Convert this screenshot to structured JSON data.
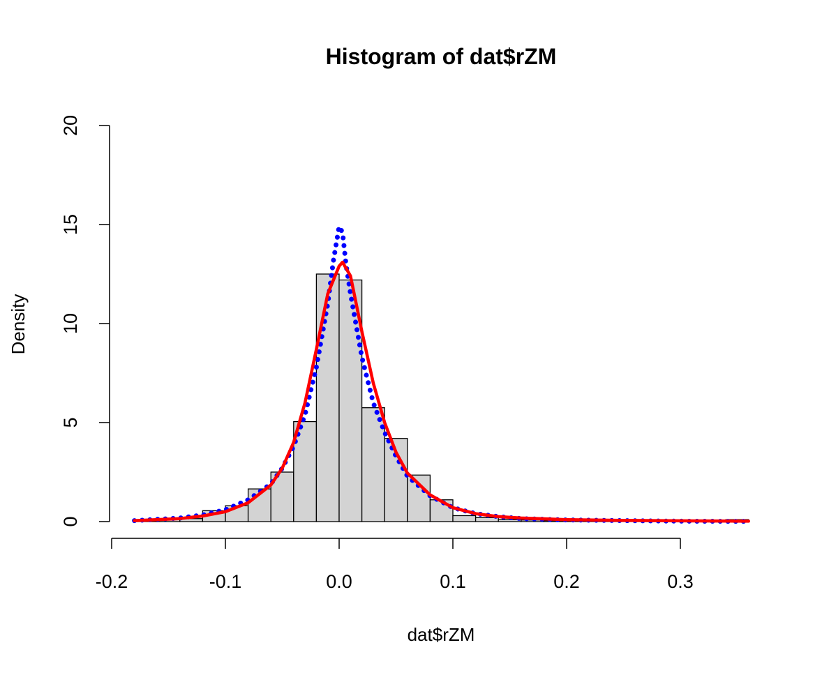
{
  "chart_data": {
    "type": "bar",
    "title": "Histogram of dat$rZM",
    "xlabel": "dat$rZM",
    "ylabel": "Density",
    "xlim": [
      -0.2,
      0.36
    ],
    "ylim": [
      0,
      20
    ],
    "x_ticks": [
      "-0.2",
      "-0.1",
      "0.0",
      "0.1",
      "0.2",
      "0.3"
    ],
    "x_tick_values": [
      -0.2,
      -0.1,
      0.0,
      0.1,
      0.2,
      0.3
    ],
    "y_ticks": [
      "0",
      "5",
      "10",
      "15",
      "20"
    ],
    "y_tick_values": [
      0,
      5,
      10,
      15,
      20
    ],
    "grid": false,
    "histogram": {
      "bin_edges": [
        -0.18,
        -0.16,
        -0.14,
        -0.12,
        -0.1,
        -0.08,
        -0.06,
        -0.04,
        -0.02,
        0.0,
        0.02,
        0.04,
        0.06,
        0.08,
        0.1,
        0.12,
        0.14,
        0.16,
        0.18,
        0.2,
        0.22,
        0.24,
        0.26,
        0.28,
        0.3,
        0.32,
        0.34,
        0.36
      ],
      "densities": [
        0.05,
        0.1,
        0.15,
        0.55,
        0.8,
        1.65,
        2.5,
        5.05,
        12.5,
        12.2,
        5.75,
        4.2,
        2.35,
        1.1,
        0.3,
        0.2,
        0.1,
        0.08,
        0.05,
        0.05,
        0.03,
        0.03,
        0.02,
        0.02,
        0.0,
        0.0,
        0.1
      ],
      "fill": "#d3d3d3",
      "stroke": "#000000"
    },
    "series": [
      {
        "style": "solid",
        "color": "#ff0000",
        "x": [
          -0.18,
          -0.14,
          -0.12,
          -0.1,
          -0.08,
          -0.06,
          -0.05,
          -0.04,
          -0.03,
          -0.02,
          -0.01,
          0.0,
          0.003,
          0.01,
          0.02,
          0.03,
          0.04,
          0.05,
          0.06,
          0.08,
          0.1,
          0.12,
          0.14,
          0.16,
          0.2,
          0.25,
          0.3,
          0.36
        ],
        "y": [
          0.05,
          0.15,
          0.28,
          0.5,
          0.95,
          1.85,
          2.7,
          4.0,
          6.0,
          8.7,
          11.5,
          12.9,
          13.1,
          12.4,
          9.6,
          7.0,
          5.0,
          3.5,
          2.45,
          1.35,
          0.7,
          0.4,
          0.25,
          0.18,
          0.1,
          0.06,
          0.04,
          0.02
        ]
      },
      {
        "style": "dotted",
        "color": "#0000ff",
        "x": [
          -0.18,
          -0.14,
          -0.12,
          -0.1,
          -0.08,
          -0.06,
          -0.05,
          -0.04,
          -0.03,
          -0.02,
          -0.01,
          -0.005,
          0.0,
          0.003,
          0.006,
          0.01,
          0.02,
          0.03,
          0.04,
          0.05,
          0.06,
          0.08,
          0.1,
          0.12,
          0.14,
          0.16,
          0.2,
          0.25,
          0.3,
          0.36
        ],
        "y": [
          0.05,
          0.18,
          0.33,
          0.6,
          1.1,
          1.9,
          2.7,
          3.8,
          5.4,
          7.8,
          11.0,
          13.2,
          14.9,
          14.6,
          13.0,
          11.5,
          8.3,
          6.0,
          4.5,
          3.3,
          2.3,
          1.3,
          0.7,
          0.4,
          0.25,
          0.15,
          0.08,
          0.05,
          0.02,
          0.01
        ]
      }
    ]
  }
}
